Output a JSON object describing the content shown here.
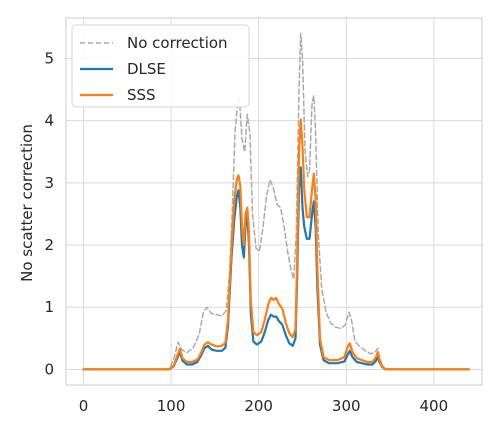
{
  "chart_data": {
    "type": "line",
    "title": "",
    "xlabel": "",
    "ylabel": "No scatter correction",
    "xlim": [
      -20,
      455
    ],
    "ylim": [
      -0.25,
      5.65
    ],
    "xticks": [
      0,
      100,
      200,
      300,
      400
    ],
    "yticks": [
      0,
      1,
      2,
      3,
      4,
      5
    ],
    "grid": true,
    "legend_position": "top-left",
    "series": [
      {
        "name": "No correction",
        "color": "#aaaaaa",
        "style": "dashed",
        "points": [
          [
            0,
            0
          ],
          [
            95,
            0
          ],
          [
            100,
            0.06
          ],
          [
            104,
            0.22
          ],
          [
            108,
            0.44
          ],
          [
            112,
            0.32
          ],
          [
            118,
            0.27
          ],
          [
            125,
            0.34
          ],
          [
            132,
            0.56
          ],
          [
            137,
            0.93
          ],
          [
            141,
            1.0
          ],
          [
            146,
            0.9
          ],
          [
            152,
            0.88
          ],
          [
            158,
            0.86
          ],
          [
            163,
            0.95
          ],
          [
            167,
            1.6
          ],
          [
            170,
            2.6
          ],
          [
            173,
            3.8
          ],
          [
            176,
            4.3
          ],
          [
            178,
            4.35
          ],
          [
            181,
            3.7
          ],
          [
            184,
            3.5
          ],
          [
            187,
            4.1
          ],
          [
            190,
            3.8
          ],
          [
            193,
            2.5
          ],
          [
            197,
            1.95
          ],
          [
            201,
            1.9
          ],
          [
            205,
            2.3
          ],
          [
            209,
            2.8
          ],
          [
            213,
            3.05
          ],
          [
            217,
            2.9
          ],
          [
            221,
            2.65
          ],
          [
            225,
            2.6
          ],
          [
            229,
            2.3
          ],
          [
            233,
            1.9
          ],
          [
            237,
            1.6
          ],
          [
            240,
            1.45
          ],
          [
            243,
            2.2
          ],
          [
            246,
            4.5
          ],
          [
            248,
            5.4
          ],
          [
            250,
            5.0
          ],
          [
            253,
            3.5
          ],
          [
            256,
            3.1
          ],
          [
            258,
            3.2
          ],
          [
            261,
            4.3
          ],
          [
            263,
            4.4
          ],
          [
            265,
            3.8
          ],
          [
            268,
            2.2
          ],
          [
            272,
            1.3
          ],
          [
            277,
            0.92
          ],
          [
            282,
            0.75
          ],
          [
            288,
            0.68
          ],
          [
            294,
            0.66
          ],
          [
            299,
            0.72
          ],
          [
            303,
            0.92
          ],
          [
            306,
            0.8
          ],
          [
            310,
            0.45
          ],
          [
            316,
            0.36
          ],
          [
            322,
            0.3
          ],
          [
            328,
            0.25
          ],
          [
            333,
            0.28
          ],
          [
            336,
            0.34
          ],
          [
            338,
            0.18
          ],
          [
            341,
            0.06
          ],
          [
            345,
            0
          ],
          [
            440,
            0
          ]
        ]
      },
      {
        "name": "DLSE",
        "color": "#1f77b4",
        "style": "solid",
        "points": [
          [
            0,
            0
          ],
          [
            98,
            0
          ],
          [
            103,
            0.05
          ],
          [
            107,
            0.18
          ],
          [
            110,
            0.28
          ],
          [
            113,
            0.14
          ],
          [
            118,
            0.08
          ],
          [
            124,
            0.08
          ],
          [
            130,
            0.12
          ],
          [
            134,
            0.22
          ],
          [
            138,
            0.34
          ],
          [
            142,
            0.38
          ],
          [
            146,
            0.32
          ],
          [
            152,
            0.3
          ],
          [
            158,
            0.3
          ],
          [
            162,
            0.35
          ],
          [
            165,
            0.7
          ],
          [
            169,
            1.8
          ],
          [
            172,
            2.4
          ],
          [
            175,
            2.78
          ],
          [
            177,
            2.88
          ],
          [
            179,
            2.6
          ],
          [
            181,
            2.0
          ],
          [
            183,
            1.8
          ],
          [
            185,
            2.3
          ],
          [
            187,
            2.5
          ],
          [
            189,
            2.0
          ],
          [
            191,
            0.9
          ],
          [
            194,
            0.45
          ],
          [
            198,
            0.4
          ],
          [
            203,
            0.45
          ],
          [
            207,
            0.6
          ],
          [
            211,
            0.8
          ],
          [
            214,
            0.88
          ],
          [
            217,
            0.85
          ],
          [
            220,
            0.85
          ],
          [
            223,
            0.78
          ],
          [
            227,
            0.72
          ],
          [
            231,
            0.55
          ],
          [
            235,
            0.42
          ],
          [
            239,
            0.38
          ],
          [
            242,
            0.5
          ],
          [
            244,
            1.5
          ],
          [
            246,
            2.9
          ],
          [
            248,
            3.25
          ],
          [
            250,
            2.6
          ],
          [
            252,
            2.3
          ],
          [
            255,
            2.1
          ],
          [
            258,
            2.1
          ],
          [
            261,
            2.5
          ],
          [
            263,
            2.7
          ],
          [
            265,
            2.3
          ],
          [
            267,
            1.3
          ],
          [
            270,
            0.4
          ],
          [
            274,
            0.15
          ],
          [
            280,
            0.1
          ],
          [
            290,
            0.1
          ],
          [
            298,
            0.13
          ],
          [
            302,
            0.25
          ],
          [
            304,
            0.3
          ],
          [
            307,
            0.2
          ],
          [
            312,
            0.12
          ],
          [
            318,
            0.1
          ],
          [
            324,
            0.08
          ],
          [
            330,
            0.08
          ],
          [
            334,
            0.14
          ],
          [
            336,
            0.2
          ],
          [
            338,
            0.12
          ],
          [
            341,
            0.04
          ],
          [
            345,
            0
          ],
          [
            440,
            0
          ]
        ]
      },
      {
        "name": "SSS",
        "color": "#ff7f0e",
        "style": "solid",
        "points": [
          [
            0,
            0
          ],
          [
            98,
            0
          ],
          [
            103,
            0.06
          ],
          [
            107,
            0.22
          ],
          [
            110,
            0.33
          ],
          [
            113,
            0.18
          ],
          [
            118,
            0.12
          ],
          [
            124,
            0.12
          ],
          [
            130,
            0.16
          ],
          [
            134,
            0.26
          ],
          [
            138,
            0.4
          ],
          [
            142,
            0.44
          ],
          [
            146,
            0.4
          ],
          [
            152,
            0.37
          ],
          [
            158,
            0.38
          ],
          [
            162,
            0.43
          ],
          [
            165,
            0.8
          ],
          [
            169,
            2.0
          ],
          [
            172,
            2.7
          ],
          [
            175,
            3.05
          ],
          [
            177,
            3.12
          ],
          [
            179,
            2.95
          ],
          [
            181,
            2.3
          ],
          [
            183,
            2.0
          ],
          [
            185,
            2.5
          ],
          [
            187,
            2.6
          ],
          [
            189,
            2.2
          ],
          [
            191,
            1.1
          ],
          [
            194,
            0.6
          ],
          [
            198,
            0.55
          ],
          [
            203,
            0.6
          ],
          [
            207,
            0.8
          ],
          [
            211,
            1.05
          ],
          [
            214,
            1.15
          ],
          [
            217,
            1.12
          ],
          [
            220,
            1.15
          ],
          [
            223,
            1.05
          ],
          [
            227,
            0.98
          ],
          [
            231,
            0.75
          ],
          [
            235,
            0.58
          ],
          [
            239,
            0.52
          ],
          [
            242,
            0.65
          ],
          [
            244,
            1.8
          ],
          [
            246,
            3.5
          ],
          [
            248,
            4.02
          ],
          [
            250,
            3.6
          ],
          [
            252,
            2.9
          ],
          [
            255,
            2.45
          ],
          [
            258,
            2.45
          ],
          [
            261,
            2.9
          ],
          [
            263,
            3.15
          ],
          [
            265,
            2.75
          ],
          [
            267,
            1.6
          ],
          [
            270,
            0.5
          ],
          [
            274,
            0.2
          ],
          [
            280,
            0.15
          ],
          [
            290,
            0.15
          ],
          [
            298,
            0.2
          ],
          [
            302,
            0.38
          ],
          [
            304,
            0.42
          ],
          [
            307,
            0.28
          ],
          [
            312,
            0.18
          ],
          [
            318,
            0.15
          ],
          [
            324,
            0.12
          ],
          [
            330,
            0.12
          ],
          [
            334,
            0.2
          ],
          [
            336,
            0.28
          ],
          [
            338,
            0.16
          ],
          [
            341,
            0.05
          ],
          [
            345,
            0
          ],
          [
            440,
            0
          ]
        ]
      }
    ]
  }
}
